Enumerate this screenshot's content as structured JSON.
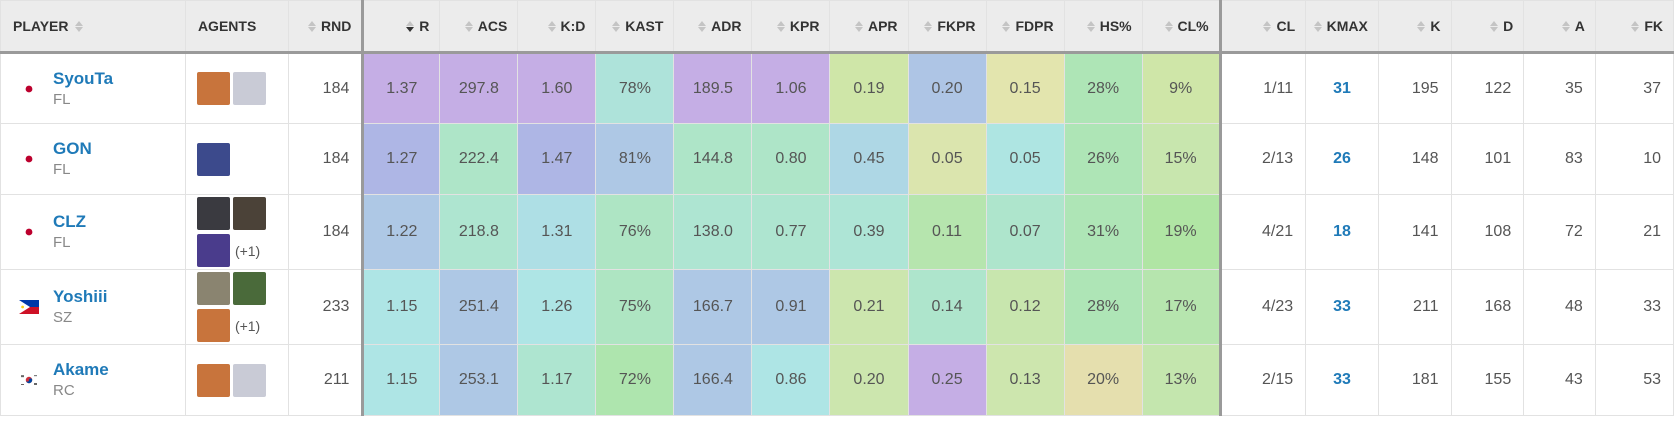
{
  "headers": [
    {
      "label": "PLAYER",
      "sort": "both"
    },
    {
      "label": "AGENTS",
      "sort": "none"
    },
    {
      "label": "RND",
      "sort": "both"
    },
    {
      "label": "R",
      "sort": "desc"
    },
    {
      "label": "ACS",
      "sort": "both"
    },
    {
      "label": "K:D",
      "sort": "both"
    },
    {
      "label": "KAST",
      "sort": "both"
    },
    {
      "label": "ADR",
      "sort": "both"
    },
    {
      "label": "KPR",
      "sort": "both"
    },
    {
      "label": "APR",
      "sort": "both"
    },
    {
      "label": "FKPR",
      "sort": "both"
    },
    {
      "label": "FDPR",
      "sort": "both"
    },
    {
      "label": "HS%",
      "sort": "both"
    },
    {
      "label": "CL%",
      "sort": "both"
    },
    {
      "label": "CL",
      "sort": "both"
    },
    {
      "label": "KMAX",
      "sort": "both"
    },
    {
      "label": "K",
      "sort": "both"
    },
    {
      "label": "D",
      "sort": "both"
    },
    {
      "label": "A",
      "sort": "both"
    },
    {
      "label": "FK",
      "sort": "both"
    }
  ],
  "rows": [
    {
      "name": "SyouTa",
      "team": "FL",
      "flag": "jp",
      "agents": [
        {
          "icon": "orange-agent-icon",
          "color": "#c8743c"
        },
        {
          "icon": "white-agent-icon",
          "color": "#c9cbd6"
        }
      ],
      "more": "",
      "rnd": "184",
      "stats": [
        "1.37",
        "297.8",
        "1.60",
        "78%",
        "189.5",
        "1.06",
        "0.19",
        "0.20",
        "0.15",
        "28%",
        "9%"
      ],
      "colors": [
        "#c5aee5",
        "#c5aee5",
        "#c5aee5",
        "#aee3da",
        "#c5aee5",
        "#c5aee5",
        "#cfe6a8",
        "#aec5e5",
        "#e3e5ae",
        "#aee5b6",
        "#cfe6a8"
      ],
      "cl": "1/11",
      "kmax": "31",
      "k": "195",
      "d": "122",
      "a": "35",
      "fk": "37"
    },
    {
      "name": "GON",
      "team": "FL",
      "flag": "jp",
      "agents": [
        {
          "icon": "dark-blue-agent-icon",
          "color": "#3c4a8c"
        }
      ],
      "more": "",
      "rnd": "184",
      "stats": [
        "1.27",
        "222.4",
        "1.47",
        "81%",
        "144.8",
        "0.80",
        "0.45",
        "0.05",
        "0.05",
        "26%",
        "15%"
      ],
      "colors": [
        "#aeb6e5",
        "#aee5c8",
        "#aeb6e5",
        "#aec8e5",
        "#aee5c8",
        "#aee5c8",
        "#aed7e5",
        "#dbe5ae",
        "#aee5e2",
        "#aee5b6",
        "#c8e6ae"
      ],
      "cl": "2/13",
      "kmax": "26",
      "k": "148",
      "d": "101",
      "a": "83",
      "fk": "10"
    },
    {
      "name": "CLZ",
      "team": "FL",
      "flag": "jp",
      "agents": [
        {
          "icon": "black-hair-agent-icon",
          "color": "#3a3a40"
        },
        {
          "icon": "bearded-agent-icon",
          "color": "#4b4238"
        },
        {
          "icon": "purple-agent-icon",
          "color": "#4a3c8c"
        }
      ],
      "more": "(+1)",
      "rnd": "184",
      "stats": [
        "1.22",
        "218.8",
        "1.31",
        "76%",
        "138.0",
        "0.77",
        "0.39",
        "0.11",
        "0.07",
        "31%",
        "19%"
      ],
      "colors": [
        "#aec8e5",
        "#aee5d0",
        "#aedfe5",
        "#aee5c4",
        "#aee5d2",
        "#aee5d0",
        "#aee5d6",
        "#b6e5ae",
        "#aee5cc",
        "#aee5b6",
        "#b0e5a4"
      ],
      "cl": "4/21",
      "kmax": "18",
      "k": "141",
      "d": "108",
      "a": "72",
      "fk": "21"
    },
    {
      "name": "Yoshiii",
      "team": "SZ",
      "flag": "ph",
      "agents": [
        {
          "icon": "hat-agent-icon",
          "color": "#8a8470"
        },
        {
          "icon": "green-agent-icon",
          "color": "#4a6a3a"
        },
        {
          "icon": "orange-agent-icon",
          "color": "#c8743c"
        }
      ],
      "more": "(+1)",
      "rnd": "233",
      "stats": [
        "1.15",
        "251.4",
        "1.26",
        "75%",
        "166.7",
        "0.91",
        "0.21",
        "0.14",
        "0.12",
        "28%",
        "17%"
      ],
      "colors": [
        "#aee5e5",
        "#aec8e5",
        "#aee5e5",
        "#aee5c2",
        "#aec8e5",
        "#aec8e5",
        "#cce6ae",
        "#aee5cc",
        "#c8e6ae",
        "#aee5b6",
        "#b6e5ae"
      ],
      "cl": "4/23",
      "kmax": "33",
      "k": "211",
      "d": "168",
      "a": "48",
      "fk": "33"
    },
    {
      "name": "Akame",
      "team": "RC",
      "flag": "kr",
      "agents": [
        {
          "icon": "orange-agent-icon",
          "color": "#c8743c"
        },
        {
          "icon": "white-agent-icon",
          "color": "#c9cbd6"
        }
      ],
      "more": "",
      "rnd": "211",
      "stats": [
        "1.15",
        "253.1",
        "1.17",
        "72%",
        "166.4",
        "0.86",
        "0.20",
        "0.25",
        "0.13",
        "20%",
        "13%"
      ],
      "colors": [
        "#aee5e5",
        "#aec8e5",
        "#aee5d0",
        "#aee5ae",
        "#aec8e5",
        "#aee5e5",
        "#cce6ae",
        "#c5aee5",
        "#cde6ae",
        "#e5dfae",
        "#c4e6ae"
      ],
      "cl": "2/15",
      "kmax": "33",
      "k": "181",
      "d": "155",
      "a": "43",
      "fk": "53"
    }
  ]
}
